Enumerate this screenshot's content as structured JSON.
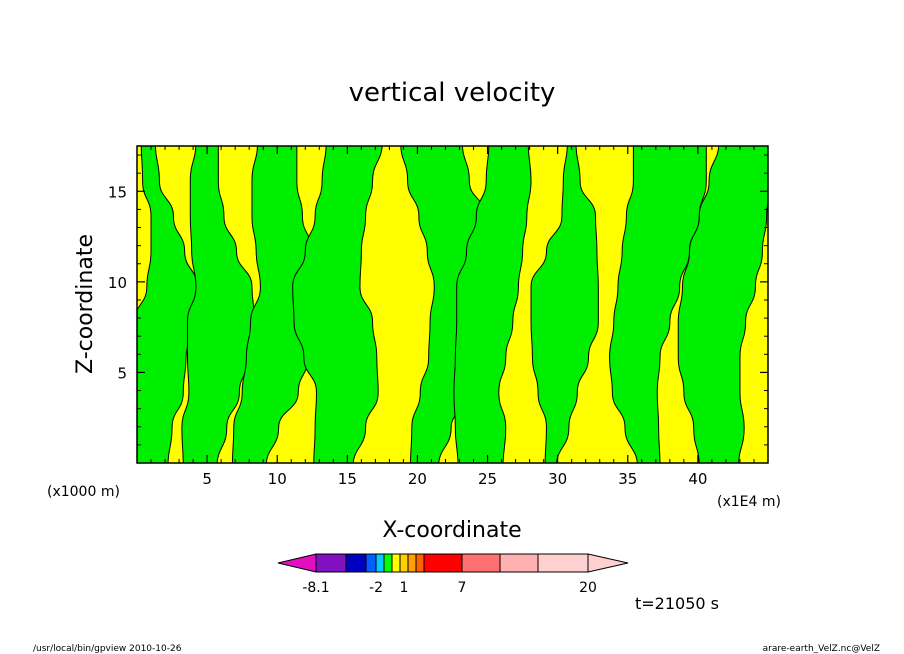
{
  "chart_data": {
    "type": "heatmap",
    "title": "vertical velocity",
    "xlabel": "X-coordinate",
    "ylabel": "Z-coordinate",
    "x_unit_left": "(x1000 m)",
    "x_unit_right": "(x1E4 m)",
    "xlim": [
      0,
      45
    ],
    "ylim": [
      0,
      17.5
    ],
    "x_ticks": [
      "5",
      "10",
      "15",
      "20",
      "25",
      "30",
      "35",
      "40"
    ],
    "x_tick_values": [
      5,
      10,
      15,
      20,
      25,
      30,
      35,
      40
    ],
    "y_ticks": [
      "5",
      "10",
      "15"
    ],
    "y_tick_values": [
      5,
      10,
      15
    ],
    "colorbar": {
      "labels": [
        "-8.1",
        "-2",
        "1",
        "7",
        "20"
      ],
      "colors": [
        "#e010c0",
        "#8010c0",
        "#0000c0",
        "#0060ff",
        "#00ccff",
        "#00ff00",
        "#ffff00",
        "#ffd000",
        "#ffa000",
        "#ff6000",
        "#ff0000",
        "#ff7070",
        "#ffb0b0",
        "#ffd0d0"
      ],
      "fill_levels": [
        "lower",
        "upper"
      ],
      "fill_colors": [
        "#00ee00",
        "#ffff00"
      ]
    },
    "green_bands": [
      {
        "c": [
          1,
          1,
          1.5,
          1.5,
          2,
          2.5,
          2.2,
          1.8,
          1,
          0.8
        ],
        "w": [
          1.2,
          1.5,
          1.8,
          2,
          2.2,
          1.8,
          1.2,
          0.8,
          0.6,
          0.5
        ]
      },
      {
        "c": [
          4.5,
          4.8,
          5.5,
          5.8,
          6,
          6.2,
          5.5,
          5,
          4.8,
          5
        ],
        "w": [
          1.2,
          1.6,
          1.8,
          2.2,
          2.4,
          2,
          1.6,
          1.2,
          1,
          0.8
        ]
      },
      {
        "c": [
          8,
          8.5,
          9.5,
          10,
          10.5,
          11,
          10.5,
          10,
          9.8,
          10
        ],
        "w": [
          1.2,
          1.6,
          2,
          2.2,
          2.4,
          2.2,
          2,
          1.8,
          1.6,
          1.4
        ]
      },
      {
        "c": [
          14,
          14.5,
          15,
          14.5,
          14,
          13.5,
          14,
          14.5,
          15,
          15.5
        ],
        "w": [
          1.4,
          1.8,
          2.2,
          2.6,
          2.8,
          2.4,
          2,
          1.8,
          1.8,
          2
        ]
      },
      {
        "c": [
          20.5,
          21,
          22,
          23,
          23.5,
          24,
          23.5,
          22.5,
          21.5,
          21
        ],
        "w": [
          1,
          1.4,
          1.8,
          2.2,
          2.6,
          2.8,
          2.8,
          2.4,
          2.2,
          2.2
        ]
      },
      {
        "c": [
          24.5,
          24.5,
          24.2,
          24.5,
          24.8,
          25,
          25.5,
          26,
          26.5,
          26.5
        ],
        "w": [
          1.6,
          1.8,
          1.6,
          1.8,
          2,
          2.2,
          2,
          1.8,
          1.6,
          1.4
        ]
      },
      {
        "c": [
          29.5,
          30,
          30,
          30.2,
          30.5,
          30.5,
          31,
          31.5,
          31,
          31
        ],
        "w": [
          0.4,
          0.8,
          1.4,
          2,
          2.4,
          2.4,
          1.8,
          1.2,
          0.6,
          0.3
        ]
      },
      {
        "c": [
          36.5,
          36,
          35.5,
          35.5,
          36,
          36.5,
          37,
          37.5,
          38,
          38
        ],
        "w": [
          0.8,
          1.2,
          1.6,
          1.8,
          2,
          2.2,
          2.4,
          2.6,
          2.6,
          2.6
        ]
      },
      {
        "c": [
          41.5,
          41.5,
          41,
          40.8,
          41,
          41.5,
          42,
          42.5,
          43,
          43.5
        ],
        "w": [
          1.4,
          1.8,
          2,
          2.2,
          2.4,
          2.6,
          2.6,
          2.4,
          2.2,
          2
        ]
      }
    ]
  },
  "footer": {
    "time": "t=21050 s",
    "left": "/usr/local/bin/gpview   2010-10-26",
    "right": "arare-earth_VelZ.nc@VelZ"
  }
}
